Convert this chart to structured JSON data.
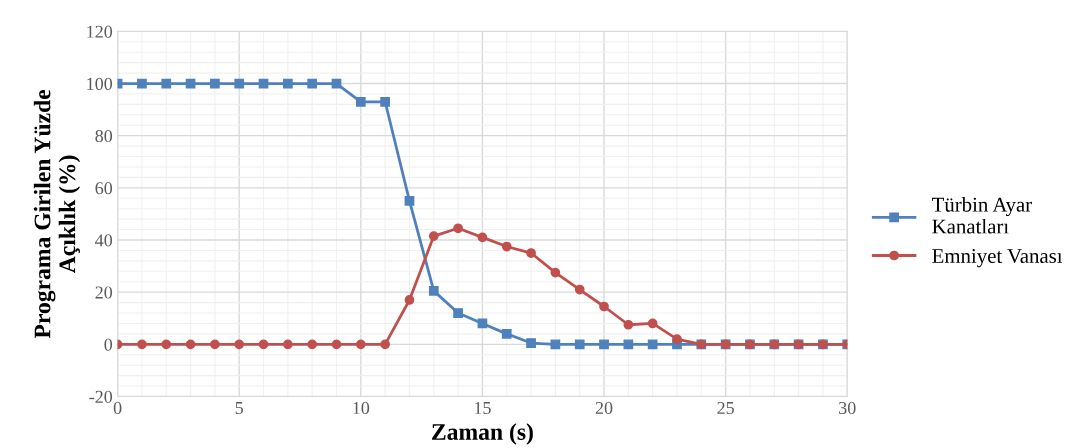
{
  "chart_data": {
    "type": "line",
    "xlabel": "Zaman (s)",
    "ylabel": "Programa Girilen Yüzde\nAçıklık (%)",
    "x": [
      0,
      1,
      2,
      3,
      4,
      5,
      6,
      7,
      8,
      9,
      10,
      11,
      12,
      13,
      14,
      15,
      16,
      17,
      18,
      19,
      20,
      21,
      22,
      23,
      24,
      25,
      26,
      27,
      28,
      29,
      30
    ],
    "series": [
      {
        "name": "Türbin Ayar\nKanatları",
        "color": "#4f81bd",
        "marker": "square",
        "values": [
          100,
          100,
          100,
          100,
          100,
          100,
          100,
          100,
          100,
          100,
          93,
          93,
          55,
          20.5,
          12,
          8,
          4,
          0.5,
          0,
          0,
          0,
          0,
          0,
          0,
          0,
          0,
          0,
          0,
          0,
          0,
          0
        ]
      },
      {
        "name": "Emniyet Vanası",
        "color": "#c0504d",
        "marker": "circle",
        "values": [
          0,
          0,
          0,
          0,
          0,
          0,
          0,
          0,
          0,
          0,
          0,
          0,
          17,
          41.5,
          44.5,
          41,
          37.5,
          35,
          27.5,
          21,
          14.5,
          7.5,
          8,
          2,
          0,
          0,
          0,
          0,
          0,
          0,
          0
        ]
      }
    ],
    "xlim": [
      0,
      30
    ],
    "xticks": [
      0,
      5,
      10,
      15,
      20,
      25,
      30
    ],
    "ylim": [
      -20,
      120
    ],
    "yticks": [
      -20,
      0,
      20,
      40,
      60,
      80,
      100,
      120
    ],
    "grid": true,
    "legend": "right",
    "line_style": "solid"
  }
}
